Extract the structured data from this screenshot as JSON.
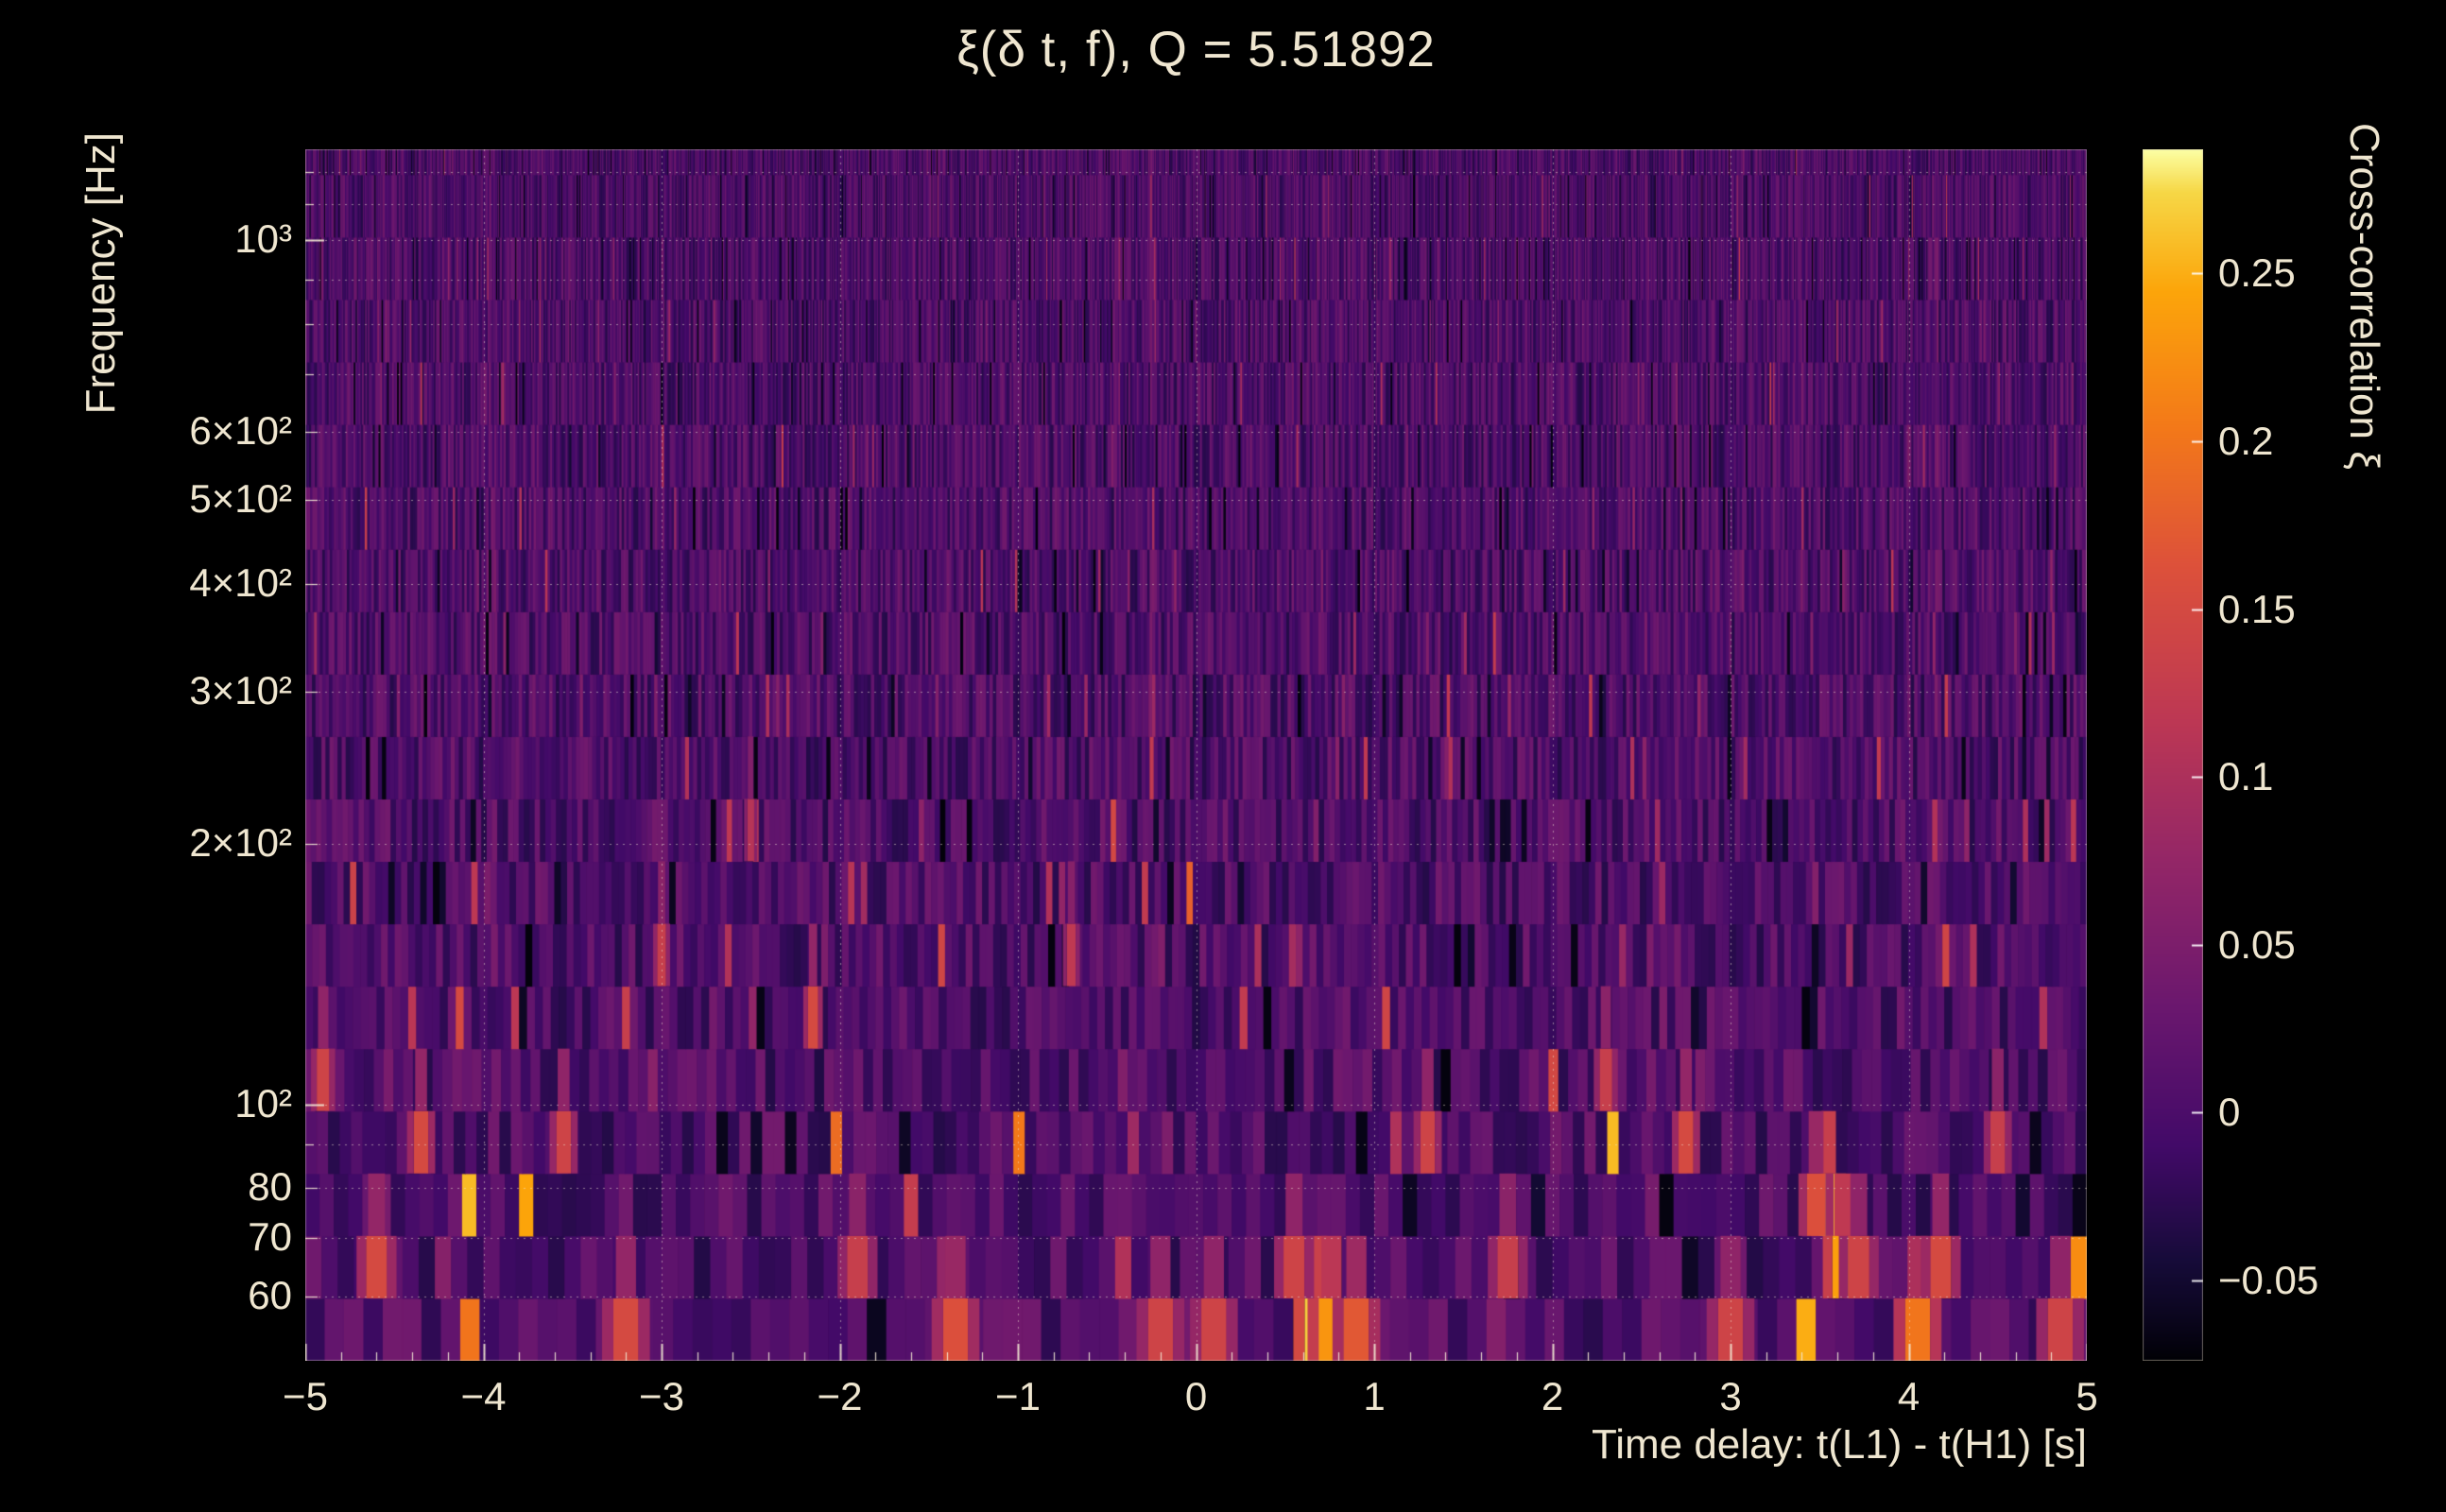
{
  "title": "ξ(δ t, f), Q = 5.51892",
  "background": "#000000",
  "text_color": "#efe6d0",
  "chart_data": {
    "type": "heatmap",
    "title": "ξ(δ t, f), Q = 5.51892",
    "q": 5.51892,
    "xlabel": "Time delay: t(L1) - t(H1) [s]",
    "ylabel": "Frequency [Hz]",
    "colorbar_label": "Cross-correlation ξ",
    "x_range": [
      -5,
      5
    ],
    "y_range_hz": [
      50.5,
      1274
    ],
    "y_scale": "log",
    "z_range": [
      -0.074,
      0.287
    ],
    "grid": true,
    "x_ticks": [
      {
        "t": -5,
        "label": "−5"
      },
      {
        "t": -4,
        "label": "−4"
      },
      {
        "t": -3,
        "label": "−3"
      },
      {
        "t": -2,
        "label": "−2"
      },
      {
        "t": -1,
        "label": "−1"
      },
      {
        "t": 0,
        "label": "0"
      },
      {
        "t": 1,
        "label": "1"
      },
      {
        "t": 2,
        "label": "2"
      },
      {
        "t": 3,
        "label": "3"
      },
      {
        "t": 4,
        "label": "4"
      },
      {
        "t": 5,
        "label": "5"
      }
    ],
    "x_minor_tick_step": 0.2,
    "y_ticks": [
      {
        "f": 1000,
        "label": "10³"
      },
      {
        "f": 600,
        "label": "6×10²"
      },
      {
        "f": 500,
        "label": "5×10²"
      },
      {
        "f": 400,
        "label": "4×10²"
      },
      {
        "f": 300,
        "label": "3×10²"
      },
      {
        "f": 200,
        "label": "2×10²"
      },
      {
        "f": 100,
        "label": "10²"
      },
      {
        "f": 80,
        "label": "80"
      },
      {
        "f": 70,
        "label": "70"
      },
      {
        "f": 60,
        "label": "60"
      }
    ],
    "y_gridlines": [
      60,
      70,
      80,
      90,
      100,
      200,
      300,
      400,
      500,
      600,
      700,
      800,
      900,
      1000,
      1100,
      1200
    ],
    "colorbar_ticks": [
      {
        "v": 0.25,
        "label": "0.25"
      },
      {
        "v": 0.2,
        "label": "0.2"
      },
      {
        "v": 0.15,
        "label": "0.15"
      },
      {
        "v": 0.1,
        "label": "0.1"
      },
      {
        "v": 0.05,
        "label": "0.05"
      },
      {
        "v": 0,
        "label": "0"
      },
      {
        "v": -0.05,
        "label": "−0.05"
      }
    ],
    "colormap": "inferno",
    "colormap_stops": [
      [
        0.0,
        "#000004"
      ],
      [
        0.12,
        "#160b39"
      ],
      [
        0.23,
        "#420a68"
      ],
      [
        0.35,
        "#6a176e"
      ],
      [
        0.47,
        "#932667"
      ],
      [
        0.58,
        "#bc3754"
      ],
      [
        0.7,
        "#dd513a"
      ],
      [
        0.8,
        "#f37819"
      ],
      [
        0.9,
        "#fca50a"
      ],
      [
        0.97,
        "#f6d746"
      ],
      [
        1.0,
        "#fcffa4"
      ]
    ],
    "noise": {
      "seed": 7,
      "columns": 300,
      "band_ratio": 1.181
    },
    "hotspots": [
      {
        "t": 0.68,
        "f": 54,
        "v": 0.27
      },
      {
        "t": 0.76,
        "f": 52,
        "v": 0.23
      },
      {
        "t": 0.9,
        "f": 56,
        "v": 0.17
      },
      {
        "t": 0.55,
        "f": 60,
        "v": 0.14
      },
      {
        "t": 3.55,
        "f": 72,
        "v": 0.26
      },
      {
        "t": 3.63,
        "f": 66,
        "v": 0.24
      },
      {
        "t": 3.48,
        "f": 78,
        "v": 0.16
      },
      {
        "t": 3.72,
        "f": 60,
        "v": 0.14
      },
      {
        "t": 4.05,
        "f": 58,
        "v": 0.2
      },
      {
        "t": 4.18,
        "f": 66,
        "v": 0.15
      },
      {
        "t": 4.5,
        "f": 95,
        "v": 0.13
      },
      {
        "t": 4.85,
        "f": 58,
        "v": 0.14
      },
      {
        "t": -4.9,
        "f": 100,
        "v": 0.14
      },
      {
        "t": -4.6,
        "f": 60,
        "v": 0.15
      },
      {
        "t": -4.35,
        "f": 90,
        "v": 0.15
      },
      {
        "t": -3.55,
        "f": 95,
        "v": 0.14
      },
      {
        "t": -3.2,
        "f": 58,
        "v": 0.15
      },
      {
        "t": -3.0,
        "f": 150,
        "v": 0.13
      },
      {
        "t": -2.5,
        "f": 200,
        "v": 0.11
      },
      {
        "t": -2.15,
        "f": 125,
        "v": 0.15
      },
      {
        "t": -1.9,
        "f": 60,
        "v": 0.13
      },
      {
        "t": -1.35,
        "f": 55,
        "v": 0.16
      },
      {
        "t": -0.7,
        "f": 140,
        "v": 0.12
      },
      {
        "t": -0.2,
        "f": 58,
        "v": 0.14
      },
      {
        "t": 0.1,
        "f": 55,
        "v": 0.14
      },
      {
        "t": 1.3,
        "f": 92,
        "v": 0.14
      },
      {
        "t": 1.75,
        "f": 60,
        "v": 0.13
      },
      {
        "t": 2.3,
        "f": 110,
        "v": 0.13
      },
      {
        "t": 2.75,
        "f": 85,
        "v": 0.15
      },
      {
        "t": 3.0,
        "f": 55,
        "v": 0.14
      }
    ]
  }
}
